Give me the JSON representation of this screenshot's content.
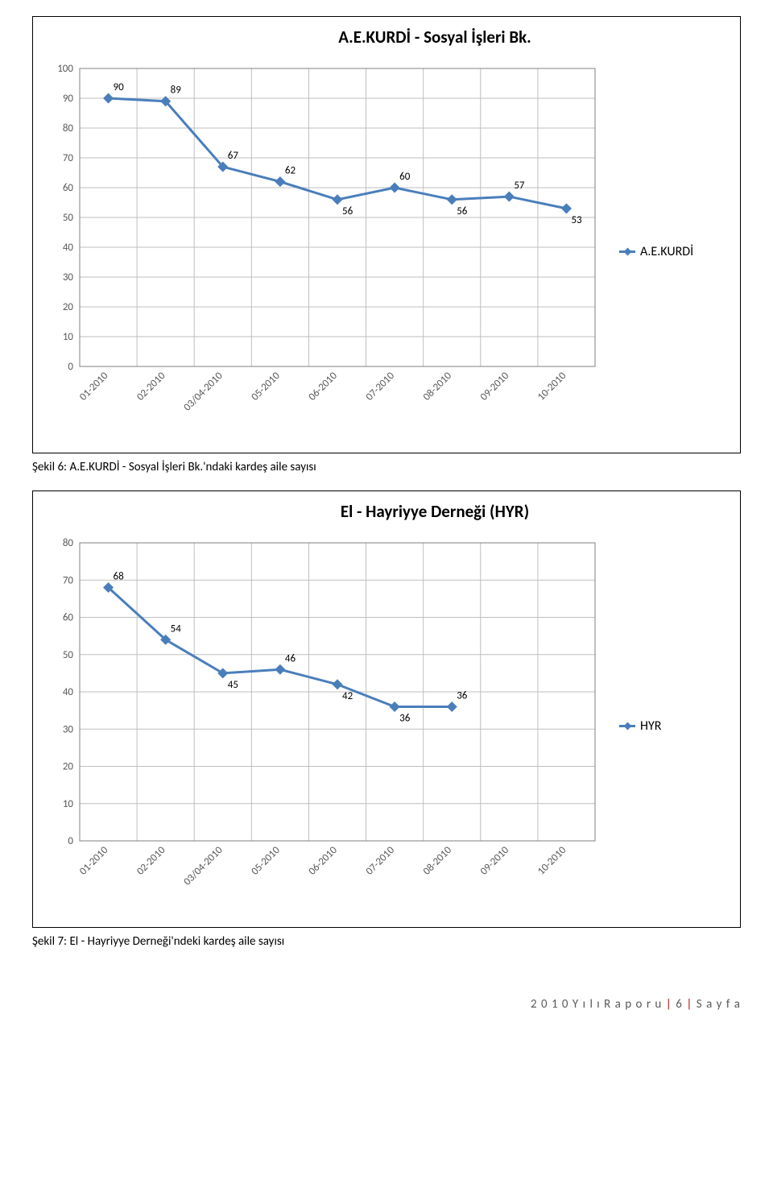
{
  "chart1": {
    "type": "line",
    "title": "A.E.KURDİ - Sosyal İşleri Bk.",
    "categories": [
      "01-2010",
      "02-2010",
      "03/04-2010",
      "05-2010",
      "06-2010",
      "07-2010",
      "08-2010",
      "09-2010",
      "10-2010"
    ],
    "values": [
      90,
      89,
      67,
      62,
      56,
      60,
      56,
      57,
      53
    ],
    "label_positions": [
      "above",
      "above",
      "above",
      "above",
      "below",
      "above",
      "below",
      "above",
      "below"
    ],
    "ylim": [
      0,
      100
    ],
    "ytick_step": 10,
    "series_color": "#4a7ebb",
    "grid_color": "#bfbfbf",
    "axis_color": "#808080",
    "background_color": "#ffffff",
    "marker_style": "diamond",
    "marker_size": 7,
    "line_width": 3,
    "label_fontsize": 13,
    "tick_fontsize": 13,
    "title_fontsize": 21,
    "legend_label": "A.E.KURDİ"
  },
  "caption1": "Şekil 6: A.E.KURDİ - Sosyal İşleri Bk.'ndaki kardeş aile sayısı",
  "chart2": {
    "type": "line",
    "title": "El - Hayriyye Derneği (HYR)",
    "categories": [
      "01-2010",
      "02-2010",
      "03/04-2010",
      "05-2010",
      "06-2010",
      "07-2010",
      "08-2010",
      "09-2010",
      "10-2010"
    ],
    "values": [
      68,
      54,
      45,
      46,
      42,
      36,
      36,
      null,
      null
    ],
    "label_positions": [
      "above",
      "above",
      "below",
      "above",
      "below",
      "below",
      "above",
      "",
      ""
    ],
    "ylim": [
      0,
      80
    ],
    "ytick_step": 10,
    "series_color": "#4a7ebb",
    "grid_color": "#bfbfbf",
    "axis_color": "#808080",
    "background_color": "#ffffff",
    "marker_style": "diamond",
    "marker_size": 7,
    "line_width": 3,
    "label_fontsize": 13,
    "tick_fontsize": 13,
    "title_fontsize": 21,
    "legend_label": "HYR"
  },
  "caption2": "Şekil 7: El - Hayriyye Derneği'ndeki kardeş aile sayısı",
  "page_footer": {
    "prefix": "2 0 1 0   Y ı l ı   R a p o r u ",
    "page": "6",
    "suffix_label": "S a y f a"
  }
}
